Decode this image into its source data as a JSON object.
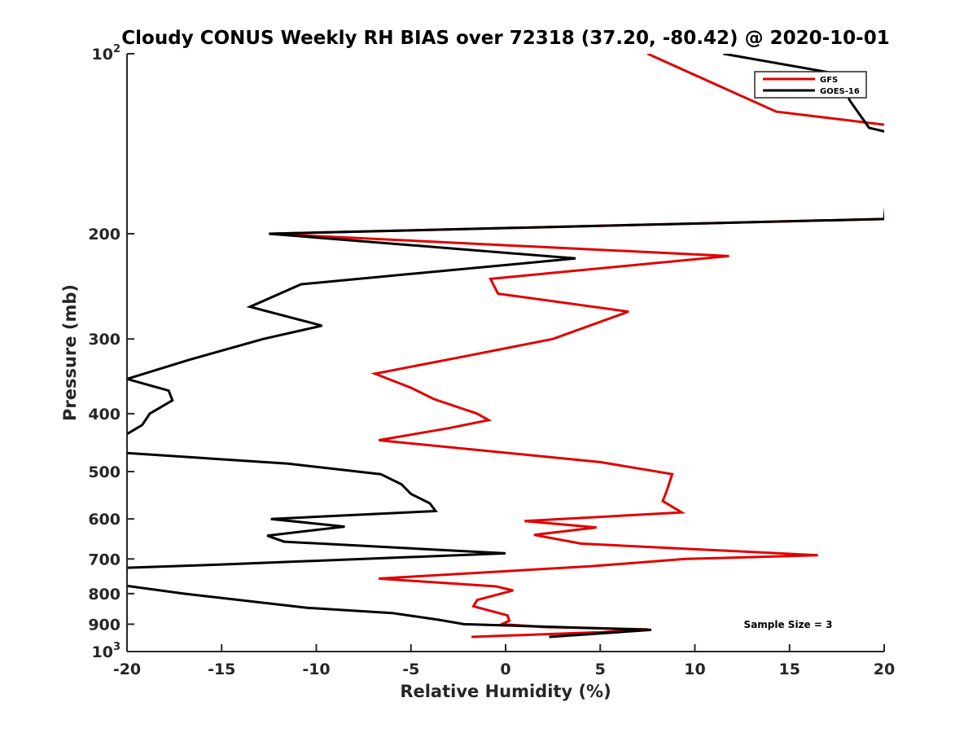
{
  "chart_data": {
    "type": "line",
    "title": "Cloudy CONUS Weekly RH BIAS over 72318 (37.20, -80.42) @ 2020-10-01",
    "xlabel": "Relative Humidity (%)",
    "ylabel": "Pressure (mb)",
    "xlim": [
      -20,
      20
    ],
    "ylim": [
      100,
      1000
    ],
    "yscale": "log",
    "yreversed": true,
    "grid": false,
    "legend_position": "top-right",
    "x_ticks": [
      {
        "value": -20,
        "label": "-20"
      },
      {
        "value": -15,
        "label": "-15"
      },
      {
        "value": -10,
        "label": "-10"
      },
      {
        "value": -5,
        "label": "-5"
      },
      {
        "value": 0,
        "label": "0"
      },
      {
        "value": 5,
        "label": "5"
      },
      {
        "value": 10,
        "label": "10"
      },
      {
        "value": 15,
        "label": "15"
      },
      {
        "value": 20,
        "label": "20"
      }
    ],
    "y_ticks": [
      {
        "value": 100,
        "base": "10",
        "exp": "2"
      },
      {
        "value": 200,
        "base": "200",
        "exp": ""
      },
      {
        "value": 300,
        "base": "300",
        "exp": ""
      },
      {
        "value": 400,
        "base": "400",
        "exp": ""
      },
      {
        "value": 500,
        "base": "500",
        "exp": ""
      },
      {
        "value": 600,
        "base": "600",
        "exp": ""
      },
      {
        "value": 700,
        "base": "700",
        "exp": ""
      },
      {
        "value": 800,
        "base": "800",
        "exp": ""
      },
      {
        "value": 900,
        "base": "900",
        "exp": ""
      },
      {
        "value": 1000,
        "base": "10",
        "exp": "3"
      }
    ],
    "series": [
      {
        "name": "GFS",
        "color": "#e00000",
        "points": [
          [
            7.5,
            100
          ],
          [
            14.3,
            125
          ],
          [
            20.5,
            132
          ],
          [
            20,
            189
          ],
          [
            -12.5,
            200
          ],
          [
            11.8,
            218
          ],
          [
            -0.8,
            238
          ],
          [
            -0.4,
            252
          ],
          [
            6.5,
            270
          ],
          [
            2.5,
            300
          ],
          [
            -2.0,
            320
          ],
          [
            -6.9,
            343
          ],
          [
            -5.0,
            362
          ],
          [
            -3.8,
            378
          ],
          [
            -1.5,
            400
          ],
          [
            -0.9,
            410
          ],
          [
            -3.0,
            423
          ],
          [
            -6.7,
            443
          ],
          [
            5.0,
            482
          ],
          [
            8.8,
            505
          ],
          [
            8.5,
            540
          ],
          [
            8.3,
            560
          ],
          [
            9.3,
            585
          ],
          [
            1.0,
            605
          ],
          [
            4.8,
            620
          ],
          [
            1.5,
            638
          ],
          [
            4.0,
            660
          ],
          [
            16.5,
            690
          ],
          [
            9.5,
            700
          ],
          [
            4.5,
            720
          ],
          [
            -6.7,
            755
          ],
          [
            -0.5,
            778
          ],
          [
            0.4,
            790
          ],
          [
            -1.5,
            820
          ],
          [
            -1.7,
            840
          ],
          [
            0.1,
            870
          ],
          [
            0.2,
            888
          ],
          [
            -0.2,
            900
          ],
          [
            2.0,
            910
          ],
          [
            7.5,
            918
          ],
          [
            5.0,
            928
          ],
          [
            -1.8,
            945
          ]
        ]
      },
      {
        "name": "GOES-16",
        "color": "#000000",
        "points": [
          [
            11.5,
            100
          ],
          [
            17.5,
            108
          ],
          [
            18.2,
            120
          ],
          [
            19.2,
            133
          ],
          [
            20.5,
            136
          ],
          [
            20,
            189
          ],
          [
            -12.5,
            200
          ],
          [
            3.7,
            220
          ],
          [
            -10.8,
            243
          ],
          [
            -13.5,
            265
          ],
          [
            -9.7,
            285
          ],
          [
            -12.8,
            300
          ],
          [
            -16.7,
            325
          ],
          [
            -20.0,
            350
          ],
          [
            -17.8,
            366
          ],
          [
            -17.6,
            380
          ],
          [
            -18.8,
            400
          ],
          [
            -19.2,
            418
          ],
          [
            -20.5,
            442
          ],
          [
            -20.2,
            465
          ],
          [
            -11.5,
            485
          ],
          [
            -6.6,
            505
          ],
          [
            -5.5,
            525
          ],
          [
            -5.0,
            545
          ],
          [
            -4.0,
            565
          ],
          [
            -3.7,
            582
          ],
          [
            -12.4,
            600
          ],
          [
            -8.5,
            618
          ],
          [
            -12.6,
            640
          ],
          [
            -11.7,
            655
          ],
          [
            0.0,
            685
          ],
          [
            -15.0,
            715
          ],
          [
            -20.5,
            725
          ],
          [
            -20.2,
            775
          ],
          [
            -17.0,
            800
          ],
          [
            -10.5,
            845
          ],
          [
            -6.0,
            862
          ],
          [
            -3.5,
            885
          ],
          [
            -2.2,
            900
          ],
          [
            7.7,
            920
          ],
          [
            2.3,
            945
          ]
        ]
      }
    ],
    "annotations": [
      "Sample Size = 3"
    ]
  }
}
